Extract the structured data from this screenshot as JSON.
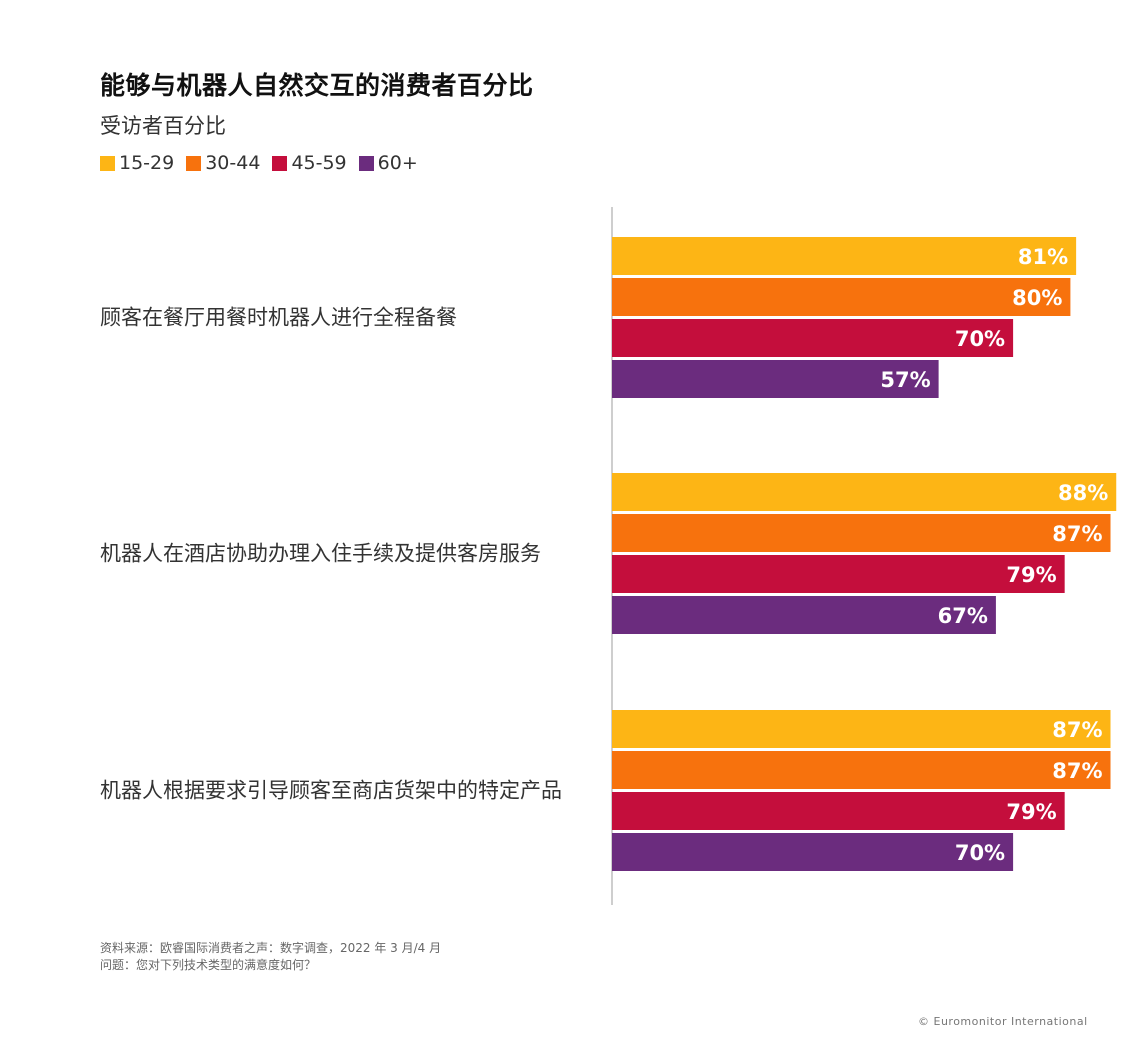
{
  "header": {
    "title": "能够与机器人自然交互的消费者百分比",
    "subtitle": "受访者百分比"
  },
  "chart_data": {
    "type": "bar",
    "orientation": "horizontal",
    "title": "能够与机器人自然交互的消费者百分比",
    "subtitle": "受访者百分比",
    "xlim": [
      0,
      100
    ],
    "grid": false,
    "legend_position": "top-left",
    "categories": [
      "顾客在餐厅用餐时机器人进行全程备餐",
      "机器人在酒店协助办理入住手续及提供客房服务",
      "机器人根据要求引导顾客至商店货架中的特定产品"
    ],
    "series": [
      {
        "name": "15-29",
        "color": "#FDB515",
        "values": [
          81,
          88,
          87
        ],
        "labels": [
          "81%",
          "88%",
          "87%"
        ]
      },
      {
        "name": "30-44",
        "color": "#F7720D",
        "values": [
          80,
          87,
          87
        ],
        "labels": [
          "80%",
          "87%",
          "87%"
        ]
      },
      {
        "name": "45-59",
        "color": "#C40E3C",
        "values": [
          70,
          79,
          79
        ],
        "labels": [
          "70%",
          "79%",
          "79%"
        ]
      },
      {
        "name": "60+",
        "color": "#6B2C7E",
        "values": [
          57,
          67,
          70
        ],
        "labels": [
          "57%",
          "67%",
          "70%"
        ]
      }
    ]
  },
  "footer": {
    "source": "资料来源：欧睿国际消费者之声：数字调查，2022 年 3 月/4 月",
    "question": "问题：您对下列技术类型的满意度如何？",
    "copyright": "© Euromonitor International"
  }
}
